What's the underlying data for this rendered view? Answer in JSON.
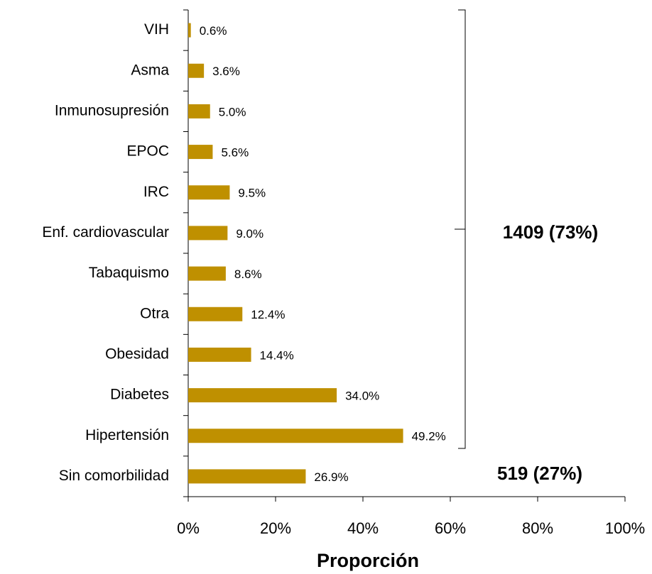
{
  "chart_data": {
    "type": "hbar",
    "categories": [
      "VIH",
      "Asma",
      "Inmunosupresión",
      "EPOC",
      "IRC",
      "Enf. cardiovascular",
      "Tabaquismo",
      "Otra",
      "Obesidad",
      "Diabetes",
      "Hipertensión",
      "Sin comorbilidad"
    ],
    "values": [
      0.6,
      3.6,
      5.0,
      5.6,
      9.5,
      9.0,
      8.6,
      12.4,
      14.4,
      34.0,
      49.2,
      26.9
    ],
    "value_labels": [
      "0.6%",
      "3.6%",
      "5.0%",
      "5.6%",
      "9.5%",
      "9.0%",
      "8.6%",
      "12.4%",
      "14.4%",
      "34.0%",
      "49.2%",
      "26.9%"
    ],
    "color": "#bf9000",
    "xlim": [
      0,
      100
    ],
    "xticks": [
      {
        "value": 0,
        "label": "0%"
      },
      {
        "value": 20,
        "label": "20%"
      },
      {
        "value": 40,
        "label": "40%"
      },
      {
        "value": 60,
        "label": "60%"
      },
      {
        "value": 80,
        "label": "80%"
      },
      {
        "value": 100,
        "label": "100%"
      }
    ],
    "x_label": "Proporción",
    "annotations": [
      "1409 (73%)",
      "519 (27%)"
    ]
  }
}
